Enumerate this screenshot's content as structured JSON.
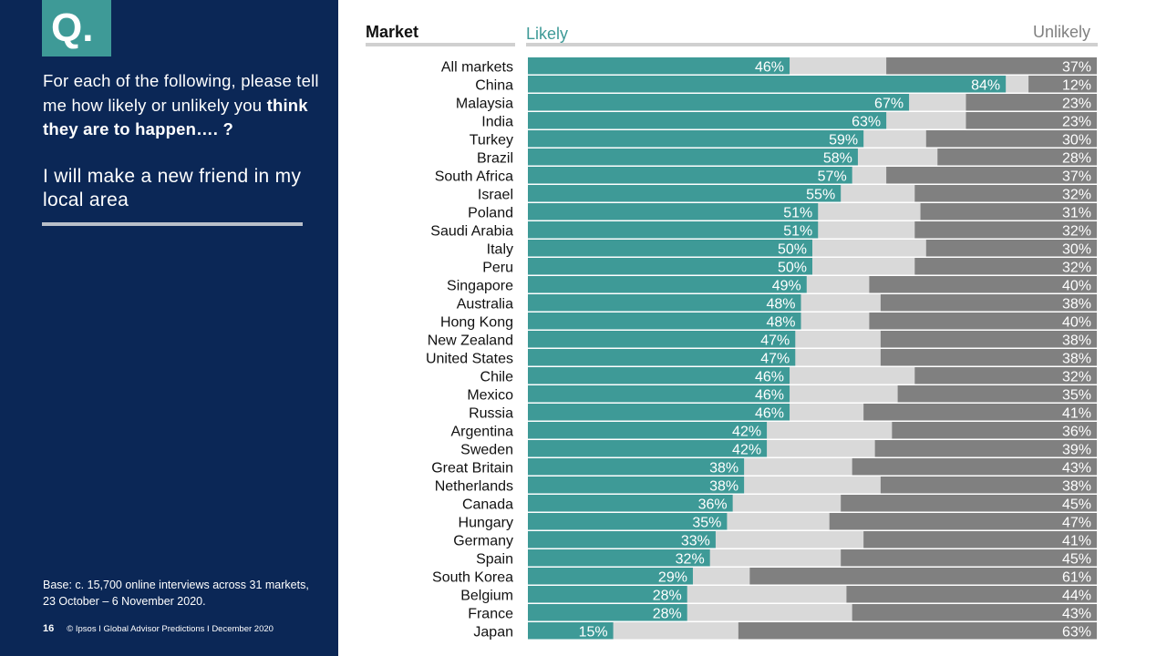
{
  "sidebar": {
    "q_label": "Q.",
    "question_plain": "For each of the following, please tell me how likely or unlikely you ",
    "question_bold": "think they are to happen…. ?",
    "statement": "I will make a new friend in my local area",
    "base_note": "Base: c. 15,700 online interviews across 31 markets,  23 October – 6 November 2020.",
    "page_number": "16",
    "footer_text": "© Ipsos I Global Advisor Predictions I December 2020"
  },
  "header": {
    "market_label": "Market",
    "likely_label": "Likely",
    "unlikely_label": "Unlikely"
  },
  "colors": {
    "likely": "#3e9a97",
    "middle": "#d9d9d9",
    "unlikely": "#808080",
    "sidebar_bg": "#0b2756"
  },
  "chart_data": {
    "type": "bar",
    "orientation": "horizontal",
    "stacked": true,
    "xlim": [
      0,
      100
    ],
    "unit": "%",
    "categories": [
      "All markets",
      "China",
      "Malaysia",
      "India",
      "Turkey",
      "Brazil",
      "South Africa",
      "Israel",
      "Poland",
      "Saudi Arabia",
      "Italy",
      "Peru",
      "Singapore",
      "Australia",
      "Hong Kong",
      "New Zealand",
      "United States",
      "Chile",
      "Mexico",
      "Russia",
      "Argentina",
      "Sweden",
      "Great Britain",
      "Netherlands",
      "Canada",
      "Hungary",
      "Germany",
      "Spain",
      "South Korea",
      "Belgium",
      "France",
      "Japan"
    ],
    "series": [
      {
        "name": "Likely",
        "values": [
          46,
          84,
          67,
          63,
          59,
          58,
          57,
          55,
          51,
          51,
          50,
          50,
          49,
          48,
          48,
          47,
          47,
          46,
          46,
          46,
          42,
          42,
          38,
          38,
          36,
          35,
          33,
          32,
          29,
          28,
          28,
          15
        ]
      },
      {
        "name": "Unlikely",
        "values": [
          37,
          12,
          23,
          23,
          30,
          28,
          37,
          32,
          31,
          32,
          30,
          32,
          40,
          38,
          40,
          38,
          38,
          32,
          35,
          41,
          36,
          39,
          43,
          38,
          45,
          47,
          41,
          45,
          61,
          44,
          43,
          63
        ]
      }
    ]
  }
}
